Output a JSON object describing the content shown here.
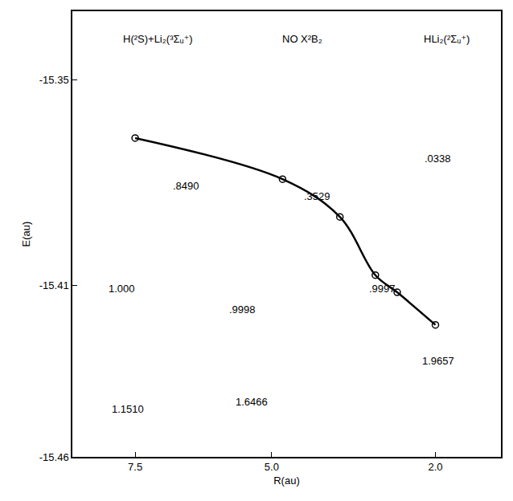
{
  "chart_data": {
    "type": "line",
    "xlabel": "R(au)",
    "ylabel": "E(au)",
    "x": [
      7.5,
      4.8,
      3.75,
      3.1,
      2.7,
      2.0
    ],
    "series": [
      {
        "values": [
          -15.367,
          -15.379,
          -15.39,
          -15.407,
          -15.412,
          -15.4215
        ],
        "color": "#000000",
        "marker": "circle-open",
        "line_style": "smooth"
      }
    ],
    "xlim": [
      8.65,
      0.8
    ],
    "xticks": [
      7.5,
      {
        "value": 5.0,
        "label": "5.0"
      },
      {
        "value": 2.0,
        "label": "2.0"
      }
    ],
    "ylim": [
      -15.46,
      -15.33
    ],
    "yticks": [
      -15.35,
      -15.41,
      -15.46
    ],
    "grid": false,
    "annotations": [
      {
        "text": "H(²S)+Li₂(³Σᵤ⁺)",
        "x": 7.08,
        "y": -15.338
      },
      {
        "text": "NO X²B₂",
        "x": 4.44,
        "y": -15.338
      },
      {
        "text": "HLi₂(²Σᵤ⁺)",
        "x": 1.8,
        "y": -15.338
      },
      {
        "text": ".8490",
        "x": 6.56,
        "y": -15.381
      },
      {
        "text": ".3529",
        "x": 4.17,
        "y": -15.384
      },
      {
        "text": ".0338",
        "x": 1.95,
        "y": -15.373
      },
      {
        "text": "1.000",
        "x": 7.75,
        "y": -15.411
      },
      {
        "text": ".9998",
        "x": 5.54,
        "y": -15.417
      },
      {
        "text": ".9997",
        "x": 2.97,
        "y": -15.411
      },
      {
        "text": "1.1510",
        "x": 7.63,
        "y": -15.446
      },
      {
        "text": "1.6466",
        "x": 5.36,
        "y": -15.444
      },
      {
        "text": "1.9657",
        "x": 1.95,
        "y": -15.432
      }
    ]
  }
}
